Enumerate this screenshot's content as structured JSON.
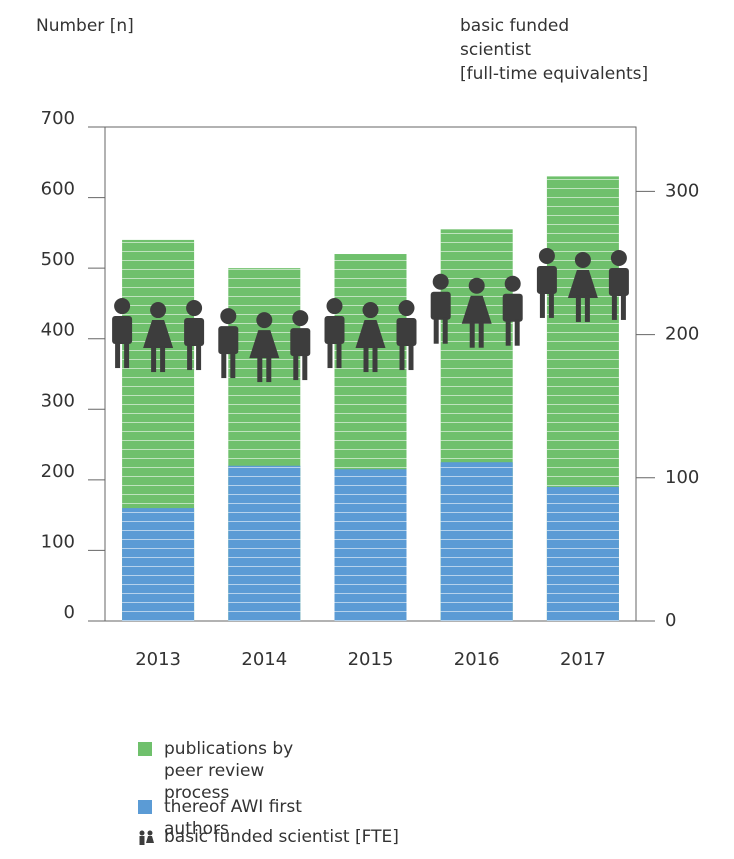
{
  "chart_data": {
    "type": "bar",
    "y_label": "Number [n]",
    "y2_label": [
      "basic funded",
      "scientist",
      "[full-time equivalents]"
    ],
    "categories": [
      "2013",
      "2014",
      "2015",
      "2016",
      "2017"
    ],
    "series": [
      {
        "name": "publications by peer review process",
        "color": "#6fc06c",
        "values": [
          540,
          500,
          520,
          555,
          630
        ]
      },
      {
        "name": "thereof AWI first authors",
        "color": "#5b9bd5",
        "values": [
          160,
          220,
          215,
          225,
          190
        ]
      },
      {
        "name": "basic funded scientist [FTE]",
        "color": "#3d3d3d",
        "axis": "y2",
        "values": [
          199,
          192,
          199,
          216,
          234
        ]
      }
    ],
    "ylim": [
      0,
      700
    ],
    "yticks": [
      0,
      100,
      200,
      300,
      400,
      500,
      600,
      700
    ],
    "y2lim": [
      0,
      345
    ],
    "y2ticks": [
      0,
      100,
      200,
      300
    ]
  }
}
